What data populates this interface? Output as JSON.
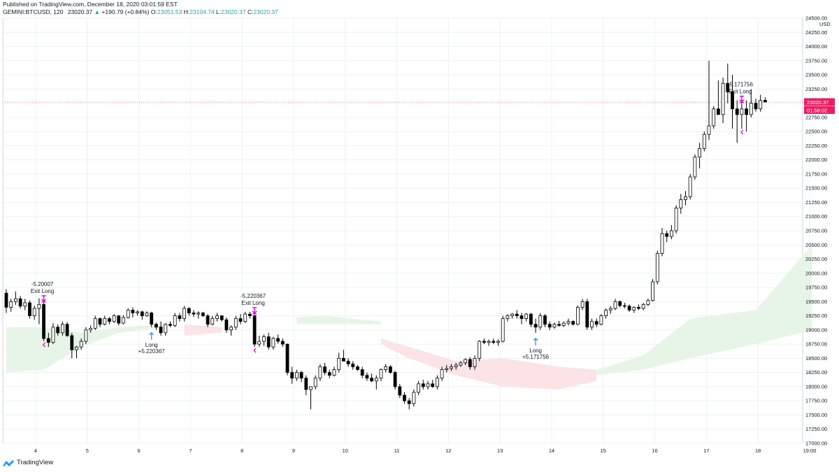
{
  "header": {
    "published": "Published on TradingView.com, December 18, 2020 03:01:59 EST",
    "symbol": "GEMINI:BTCUSD, 120",
    "last": "23020.37",
    "arrow": "▲",
    "change": "+190.79 (+0.84%)",
    "o_label": "O:",
    "o_value": "23051.53",
    "h_label": "H:",
    "h_value": "23104.74",
    "l_label": "L:",
    "l_value": "23020.37",
    "c_label": "C:",
    "c_value": "23020.37"
  },
  "footer": {
    "brand": "TradingView",
    "logo_icon": "tradingview-logo-icon"
  },
  "colors": {
    "up": "#26a69a",
    "marker_exit": "#d500d5",
    "marker_long": "#2196f3",
    "price_line": "#e91e63",
    "cloud_green": "#e7f5e7",
    "cloud_red": "#fbe3e6",
    "candle_dark": "#000000",
    "candle_light": "#ffffff"
  },
  "chart_data": {
    "type": "candlestick",
    "y_unit": "USD",
    "ylim": [
      17000,
      24500
    ],
    "y_ticks": [
      "24500.00",
      "24250.00",
      "24000.00",
      "23750.00",
      "23500.00",
      "23250.00",
      "23000.00",
      "22750.00",
      "22500.00",
      "22250.00",
      "22000.00",
      "21750.00",
      "21500.00",
      "21250.00",
      "21000.00",
      "20750.00",
      "20500.00",
      "20250.00",
      "20000.00",
      "19750.00",
      "19500.00",
      "19250.00",
      "19000.00",
      "18750.00",
      "18500.00",
      "18250.00",
      "18000.00",
      "17750.00",
      "17500.00",
      "17250.00",
      "17000.00"
    ],
    "x_ticks": [
      "4",
      "5",
      "6",
      "7",
      "8",
      "9",
      "10",
      "11",
      "12",
      "13",
      "14",
      "15",
      "16",
      "17",
      "18",
      "19:00"
    ],
    "current_price": "23020.37",
    "countdown": "01:58:02",
    "grid": true,
    "candles": [
      {
        "o": 19650,
        "h": 19720,
        "l": 19300,
        "c": 19400
      },
      {
        "o": 19400,
        "h": 19550,
        "l": 19320,
        "c": 19500
      },
      {
        "o": 19500,
        "h": 19680,
        "l": 19440,
        "c": 19550
      },
      {
        "o": 19550,
        "h": 19600,
        "l": 19380,
        "c": 19420
      },
      {
        "o": 19420,
        "h": 19550,
        "l": 19350,
        "c": 19480
      },
      {
        "o": 19480,
        "h": 19520,
        "l": 19200,
        "c": 19250
      },
      {
        "o": 19250,
        "h": 19430,
        "l": 19180,
        "c": 19380
      },
      {
        "o": 19380,
        "h": 19560,
        "l": 19100,
        "c": 19450
      },
      {
        "o": 19450,
        "h": 19480,
        "l": 18800,
        "c": 18850
      },
      {
        "o": 18850,
        "h": 18950,
        "l": 18700,
        "c": 18780
      },
      {
        "o": 18780,
        "h": 19120,
        "l": 18750,
        "c": 19050
      },
      {
        "o": 19050,
        "h": 19100,
        "l": 18900,
        "c": 18950
      },
      {
        "o": 18950,
        "h": 19150,
        "l": 18900,
        "c": 19100
      },
      {
        "o": 19100,
        "h": 19140,
        "l": 18880,
        "c": 18900
      },
      {
        "o": 18900,
        "h": 18950,
        "l": 18500,
        "c": 18650
      },
      {
        "o": 18650,
        "h": 18720,
        "l": 18500,
        "c": 18700
      },
      {
        "o": 18700,
        "h": 18850,
        "l": 18650,
        "c": 18800
      },
      {
        "o": 18800,
        "h": 19050,
        "l": 18750,
        "c": 19000
      },
      {
        "o": 19000,
        "h": 19080,
        "l": 18950,
        "c": 19030
      },
      {
        "o": 19030,
        "h": 19250,
        "l": 19000,
        "c": 19200
      },
      {
        "o": 19200,
        "h": 19220,
        "l": 19050,
        "c": 19100
      },
      {
        "o": 19100,
        "h": 19250,
        "l": 19080,
        "c": 19200
      },
      {
        "o": 19200,
        "h": 19230,
        "l": 19100,
        "c": 19150
      },
      {
        "o": 19150,
        "h": 19280,
        "l": 19120,
        "c": 19250
      },
      {
        "o": 19250,
        "h": 19260,
        "l": 19080,
        "c": 19120
      },
      {
        "o": 19120,
        "h": 19260,
        "l": 19100,
        "c": 19220
      },
      {
        "o": 19220,
        "h": 19380,
        "l": 19200,
        "c": 19350
      },
      {
        "o": 19350,
        "h": 19400,
        "l": 19220,
        "c": 19300
      },
      {
        "o": 19300,
        "h": 19350,
        "l": 19250,
        "c": 19320
      },
      {
        "o": 19320,
        "h": 19340,
        "l": 19180,
        "c": 19250
      },
      {
        "o": 19250,
        "h": 19330,
        "l": 19230,
        "c": 19300
      },
      {
        "o": 19300,
        "h": 19320,
        "l": 19050,
        "c": 19100
      },
      {
        "o": 19100,
        "h": 19130,
        "l": 19000,
        "c": 19050
      },
      {
        "o": 19050,
        "h": 19150,
        "l": 18900,
        "c": 18950
      },
      {
        "o": 18950,
        "h": 19120,
        "l": 18900,
        "c": 19100
      },
      {
        "o": 19100,
        "h": 19150,
        "l": 19050,
        "c": 19080
      },
      {
        "o": 19080,
        "h": 19300,
        "l": 19050,
        "c": 19250
      },
      {
        "o": 19250,
        "h": 19300,
        "l": 19150,
        "c": 19200
      },
      {
        "o": 19200,
        "h": 19420,
        "l": 19150,
        "c": 19380
      },
      {
        "o": 19380,
        "h": 19400,
        "l": 19250,
        "c": 19300
      },
      {
        "o": 19300,
        "h": 19350,
        "l": 19230,
        "c": 19280
      },
      {
        "o": 19280,
        "h": 19330,
        "l": 19200,
        "c": 19300
      },
      {
        "o": 19300,
        "h": 19320,
        "l": 19230,
        "c": 19250
      },
      {
        "o": 19250,
        "h": 19280,
        "l": 19050,
        "c": 19100
      },
      {
        "o": 19100,
        "h": 19250,
        "l": 19080,
        "c": 19200
      },
      {
        "o": 19200,
        "h": 19300,
        "l": 19150,
        "c": 19250
      },
      {
        "o": 19250,
        "h": 19260,
        "l": 19150,
        "c": 19180
      },
      {
        "o": 19180,
        "h": 19220,
        "l": 18950,
        "c": 19000
      },
      {
        "o": 19000,
        "h": 19080,
        "l": 18900,
        "c": 19050
      },
      {
        "o": 19050,
        "h": 19250,
        "l": 19000,
        "c": 19200
      },
      {
        "o": 19200,
        "h": 19280,
        "l": 19100,
        "c": 19150
      },
      {
        "o": 19150,
        "h": 19320,
        "l": 19120,
        "c": 19280
      },
      {
        "o": 19280,
        "h": 19320,
        "l": 19200,
        "c": 19250
      },
      {
        "o": 19250,
        "h": 19270,
        "l": 18700,
        "c": 18750
      },
      {
        "o": 18750,
        "h": 18900,
        "l": 18700,
        "c": 18800
      },
      {
        "o": 18800,
        "h": 18920,
        "l": 18720,
        "c": 18880
      },
      {
        "o": 18880,
        "h": 18950,
        "l": 18650,
        "c": 18700
      },
      {
        "o": 18700,
        "h": 18880,
        "l": 18650,
        "c": 18850
      },
      {
        "o": 18850,
        "h": 18920,
        "l": 18760,
        "c": 18800
      },
      {
        "o": 18800,
        "h": 18850,
        "l": 18700,
        "c": 18750
      },
      {
        "o": 18750,
        "h": 18760,
        "l": 18200,
        "c": 18250
      },
      {
        "o": 18250,
        "h": 18350,
        "l": 18050,
        "c": 18150
      },
      {
        "o": 18150,
        "h": 18300,
        "l": 18100,
        "c": 18250
      },
      {
        "o": 18250,
        "h": 18280,
        "l": 18080,
        "c": 18150
      },
      {
        "o": 18150,
        "h": 18200,
        "l": 17850,
        "c": 17950
      },
      {
        "o": 17950,
        "h": 18000,
        "l": 17600,
        "c": 18000
      },
      {
        "o": 18000,
        "h": 18200,
        "l": 17950,
        "c": 18150
      },
      {
        "o": 18150,
        "h": 18400,
        "l": 18100,
        "c": 18350
      },
      {
        "o": 18350,
        "h": 18420,
        "l": 18200,
        "c": 18250
      },
      {
        "o": 18250,
        "h": 18300,
        "l": 18150,
        "c": 18200
      },
      {
        "o": 18200,
        "h": 18350,
        "l": 18180,
        "c": 18300
      },
      {
        "o": 18300,
        "h": 18600,
        "l": 18250,
        "c": 18500
      },
      {
        "o": 18500,
        "h": 18650,
        "l": 18450,
        "c": 18450
      },
      {
        "o": 18450,
        "h": 18500,
        "l": 18350,
        "c": 18400
      },
      {
        "o": 18400,
        "h": 18450,
        "l": 18300,
        "c": 18350
      },
      {
        "o": 18350,
        "h": 18380,
        "l": 18280,
        "c": 18300
      },
      {
        "o": 18300,
        "h": 18350,
        "l": 18150,
        "c": 18200
      },
      {
        "o": 18200,
        "h": 18250,
        "l": 18100,
        "c": 18150
      },
      {
        "o": 18150,
        "h": 18230,
        "l": 18080,
        "c": 18100
      },
      {
        "o": 18100,
        "h": 18200,
        "l": 17950,
        "c": 18150
      },
      {
        "o": 18150,
        "h": 18320,
        "l": 18100,
        "c": 18300
      },
      {
        "o": 18300,
        "h": 18400,
        "l": 18250,
        "c": 18350
      },
      {
        "o": 18350,
        "h": 18380,
        "l": 18230,
        "c": 18250
      },
      {
        "o": 18250,
        "h": 18280,
        "l": 17950,
        "c": 18000
      },
      {
        "o": 18000,
        "h": 18050,
        "l": 17800,
        "c": 17850
      },
      {
        "o": 17850,
        "h": 17900,
        "l": 17700,
        "c": 17750
      },
      {
        "o": 17750,
        "h": 17800,
        "l": 17600,
        "c": 17700
      },
      {
        "o": 17700,
        "h": 17950,
        "l": 17650,
        "c": 17900
      },
      {
        "o": 17900,
        "h": 18100,
        "l": 17850,
        "c": 18050
      },
      {
        "o": 18050,
        "h": 18120,
        "l": 17950,
        "c": 18000
      },
      {
        "o": 18000,
        "h": 18100,
        "l": 17950,
        "c": 18050
      },
      {
        "o": 18050,
        "h": 18120,
        "l": 17980,
        "c": 18000
      },
      {
        "o": 18000,
        "h": 18200,
        "l": 17950,
        "c": 18150
      },
      {
        "o": 18150,
        "h": 18350,
        "l": 18100,
        "c": 18300
      },
      {
        "o": 18300,
        "h": 18380,
        "l": 18250,
        "c": 18320
      },
      {
        "o": 18320,
        "h": 18400,
        "l": 18280,
        "c": 18350
      },
      {
        "o": 18350,
        "h": 18420,
        "l": 18300,
        "c": 18380
      },
      {
        "o": 18380,
        "h": 18450,
        "l": 18350,
        "c": 18420
      },
      {
        "o": 18420,
        "h": 18500,
        "l": 18380,
        "c": 18480
      },
      {
        "o": 18480,
        "h": 18520,
        "l": 18300,
        "c": 18350
      },
      {
        "o": 18350,
        "h": 18550,
        "l": 18300,
        "c": 18500
      },
      {
        "o": 18500,
        "h": 18820,
        "l": 18450,
        "c": 18800
      },
      {
        "o": 18800,
        "h": 18850,
        "l": 18750,
        "c": 18780
      },
      {
        "o": 18780,
        "h": 18830,
        "l": 18720,
        "c": 18800
      },
      {
        "o": 18800,
        "h": 18850,
        "l": 18750,
        "c": 18780
      },
      {
        "o": 18780,
        "h": 18830,
        "l": 18720,
        "c": 18800
      },
      {
        "o": 18800,
        "h": 19250,
        "l": 18780,
        "c": 19200
      },
      {
        "o": 19200,
        "h": 19280,
        "l": 19150,
        "c": 19250
      },
      {
        "o": 19250,
        "h": 19300,
        "l": 19200,
        "c": 19280
      },
      {
        "o": 19280,
        "h": 19350,
        "l": 19200,
        "c": 19250
      },
      {
        "o": 19250,
        "h": 19300,
        "l": 19100,
        "c": 19200
      },
      {
        "o": 19200,
        "h": 19300,
        "l": 19150,
        "c": 19280
      },
      {
        "o": 19280,
        "h": 19300,
        "l": 19050,
        "c": 19100
      },
      {
        "o": 19100,
        "h": 19200,
        "l": 18950,
        "c": 19050
      },
      {
        "o": 19050,
        "h": 19300,
        "l": 19000,
        "c": 19250
      },
      {
        "o": 19250,
        "h": 19280,
        "l": 19050,
        "c": 19100
      },
      {
        "o": 19100,
        "h": 19150,
        "l": 19000,
        "c": 19050
      },
      {
        "o": 19050,
        "h": 19130,
        "l": 19020,
        "c": 19100
      },
      {
        "o": 19100,
        "h": 19160,
        "l": 19060,
        "c": 19080
      },
      {
        "o": 19080,
        "h": 19150,
        "l": 19050,
        "c": 19120
      },
      {
        "o": 19120,
        "h": 19200,
        "l": 19080,
        "c": 19150
      },
      {
        "o": 19150,
        "h": 19170,
        "l": 19080,
        "c": 19100
      },
      {
        "o": 19100,
        "h": 19430,
        "l": 19080,
        "c": 19400
      },
      {
        "o": 19400,
        "h": 19550,
        "l": 19350,
        "c": 19500
      },
      {
        "o": 19500,
        "h": 19550,
        "l": 19000,
        "c": 19050
      },
      {
        "o": 19050,
        "h": 19200,
        "l": 19000,
        "c": 19150
      },
      {
        "o": 19150,
        "h": 19200,
        "l": 19050,
        "c": 19100
      },
      {
        "o": 19100,
        "h": 19280,
        "l": 19080,
        "c": 19250
      },
      {
        "o": 19250,
        "h": 19380,
        "l": 19200,
        "c": 19350
      },
      {
        "o": 19350,
        "h": 19420,
        "l": 19280,
        "c": 19380
      },
      {
        "o": 19380,
        "h": 19550,
        "l": 19350,
        "c": 19500
      },
      {
        "o": 19500,
        "h": 19520,
        "l": 19400,
        "c": 19430
      },
      {
        "o": 19430,
        "h": 19480,
        "l": 19380,
        "c": 19420
      },
      {
        "o": 19420,
        "h": 19450,
        "l": 19320,
        "c": 19350
      },
      {
        "o": 19350,
        "h": 19420,
        "l": 19300,
        "c": 19400
      },
      {
        "o": 19400,
        "h": 19450,
        "l": 19350,
        "c": 19380
      },
      {
        "o": 19380,
        "h": 19480,
        "l": 19350,
        "c": 19450
      },
      {
        "o": 19450,
        "h": 19550,
        "l": 19420,
        "c": 19520
      },
      {
        "o": 19520,
        "h": 19900,
        "l": 19500,
        "c": 19850
      },
      {
        "o": 19850,
        "h": 20400,
        "l": 19800,
        "c": 20350
      },
      {
        "o": 20350,
        "h": 20800,
        "l": 20300,
        "c": 20700
      },
      {
        "o": 20700,
        "h": 20750,
        "l": 20550,
        "c": 20650
      },
      {
        "o": 20650,
        "h": 20850,
        "l": 20600,
        "c": 20750
      },
      {
        "o": 20750,
        "h": 21200,
        "l": 20700,
        "c": 21150
      },
      {
        "o": 21150,
        "h": 21400,
        "l": 21050,
        "c": 21300
      },
      {
        "o": 21300,
        "h": 21450,
        "l": 21200,
        "c": 21350
      },
      {
        "o": 21350,
        "h": 21750,
        "l": 21300,
        "c": 21700
      },
      {
        "o": 21700,
        "h": 22100,
        "l": 21650,
        "c": 22050
      },
      {
        "o": 22050,
        "h": 22300,
        "l": 21850,
        "c": 22200
      },
      {
        "o": 22200,
        "h": 22500,
        "l": 22150,
        "c": 22450
      },
      {
        "o": 22450,
        "h": 23750,
        "l": 22350,
        "c": 22600
      },
      {
        "o": 22600,
        "h": 22950,
        "l": 22550,
        "c": 22900
      },
      {
        "o": 22900,
        "h": 23400,
        "l": 22850,
        "c": 22800
      },
      {
        "o": 22800,
        "h": 23450,
        "l": 22650,
        "c": 23350
      },
      {
        "o": 23350,
        "h": 23700,
        "l": 23000,
        "c": 23200
      },
      {
        "o": 23200,
        "h": 23500,
        "l": 22550,
        "c": 22900
      },
      {
        "o": 22900,
        "h": 23050,
        "l": 22300,
        "c": 22800
      },
      {
        "o": 22800,
        "h": 23000,
        "l": 22550,
        "c": 22900
      },
      {
        "o": 22900,
        "h": 23050,
        "l": 22500,
        "c": 22800
      },
      {
        "o": 22800,
        "h": 23250,
        "l": 22750,
        "c": 23000
      },
      {
        "o": 23000,
        "h": 23080,
        "l": 22850,
        "c": 22900
      },
      {
        "o": 22900,
        "h": 23150,
        "l": 22850,
        "c": 23050
      },
      {
        "o": 23051.53,
        "h": 23104.74,
        "l": 23020.37,
        "c": 23020.37
      }
    ],
    "annotations": [
      {
        "kind": "exit",
        "value": "-5.20007",
        "label": "Exit Long",
        "bar": 8
      },
      {
        "kind": "long",
        "value": "+5.220367",
        "label": "Long",
        "bar": 31
      },
      {
        "kind": "exit",
        "value": "-5.220367",
        "label": "Exit Long",
        "bar": 53
      },
      {
        "kind": "long",
        "value": "+5.171756",
        "label": "Long",
        "bar": 113
      },
      {
        "kind": "exit",
        "value": "-5.171756",
        "label": "Exit Long",
        "bar": 157
      }
    ]
  }
}
